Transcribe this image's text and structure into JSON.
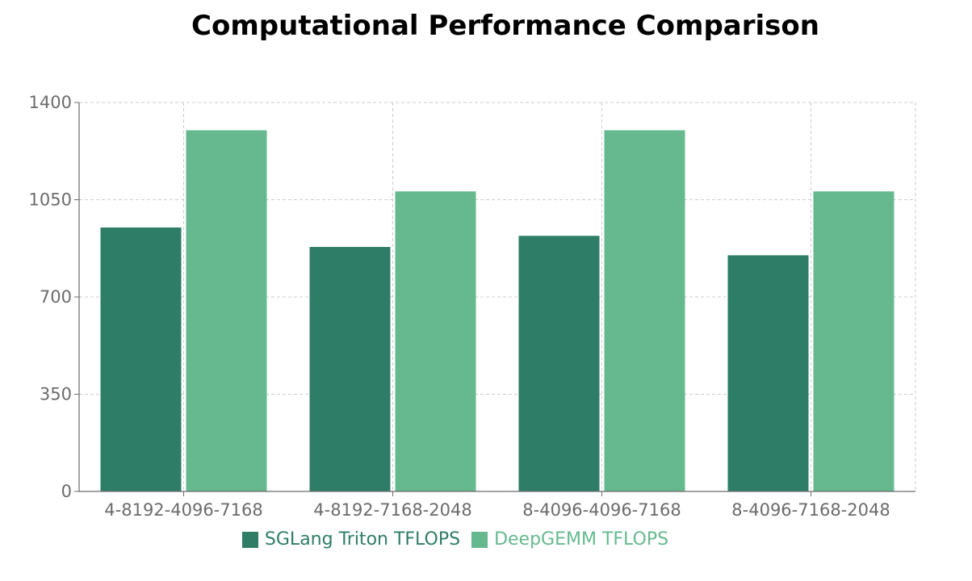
{
  "chart_data": {
    "type": "bar",
    "title": "Computational Performance Comparison",
    "categories": [
      "4-8192-4096-7168",
      "4-8192-7168-2048",
      "8-4096-4096-7168",
      "8-4096-7168-2048"
    ],
    "series": [
      {
        "name": "SGLang Triton TFLOPS",
        "values": [
          950,
          880,
          920,
          850
        ],
        "color": "#2e7d67"
      },
      {
        "name": "DeepGEMM TFLOPS",
        "values": [
          1300,
          1080,
          1300,
          1080
        ],
        "color": "#66b98e"
      }
    ],
    "ylim": [
      0,
      1400
    ],
    "yticks": [
      0,
      350,
      700,
      1050,
      1400
    ],
    "grid": true,
    "legend_position": "bottom"
  }
}
